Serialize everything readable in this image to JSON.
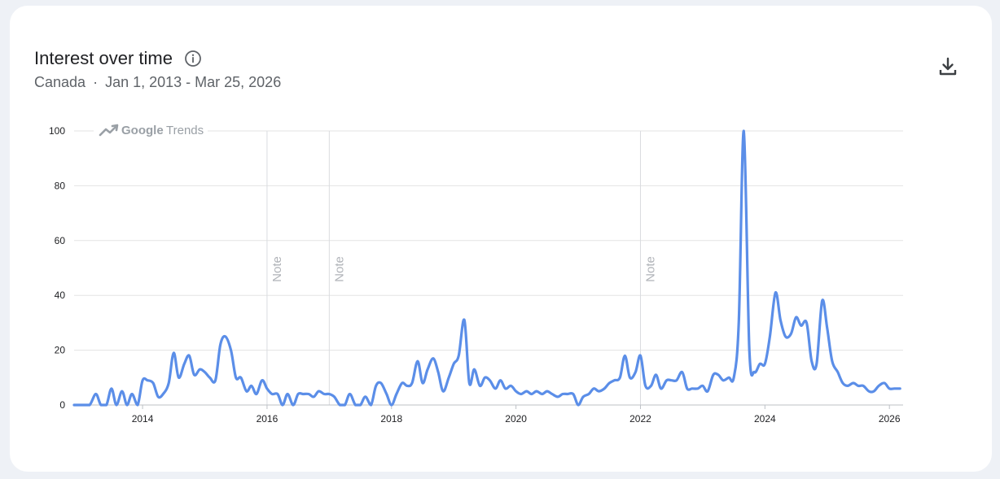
{
  "header": {
    "title": "Interest over time",
    "region": "Canada",
    "separator": "·",
    "date_range": "Jan 1, 2013 - Mar 25, 2026"
  },
  "icons": {
    "info": "info-icon",
    "download": "download-icon",
    "trends_logo": "trending-up-icon"
  },
  "watermark": {
    "brand": "Google",
    "product": "Trends"
  },
  "colors": {
    "line": "#5b8ee8",
    "grid": "#e3e3e3",
    "note_line": "#dadce0"
  },
  "chart_data": {
    "type": "line",
    "title": "Interest over time",
    "xlabel": "",
    "ylabel": "",
    "ylim": [
      0,
      100
    ],
    "xlim": [
      2012.9,
      2026.22
    ],
    "yticks": [
      0,
      20,
      40,
      60,
      80,
      100
    ],
    "xticks": [
      {
        "value": 2014,
        "label": "2014"
      },
      {
        "value": 2016,
        "label": "2016"
      },
      {
        "value": 2018,
        "label": "2018"
      },
      {
        "value": 2020,
        "label": "2020"
      },
      {
        "value": 2022,
        "label": "2022"
      },
      {
        "value": 2024,
        "label": "2024"
      },
      {
        "value": 2026,
        "label": "2026"
      }
    ],
    "grid": true,
    "notes": [
      {
        "x": 2016.0,
        "label": "Note"
      },
      {
        "x": 2017.0,
        "label": "Note"
      },
      {
        "x": 2022.0,
        "label": "Note"
      }
    ],
    "series": [
      {
        "points": [
          [
            2012.9,
            0
          ],
          [
            2013.05,
            0
          ],
          [
            2013.15,
            0
          ],
          [
            2013.25,
            4
          ],
          [
            2013.33,
            0
          ],
          [
            2013.42,
            0
          ],
          [
            2013.5,
            6
          ],
          [
            2013.58,
            0
          ],
          [
            2013.67,
            5
          ],
          [
            2013.75,
            0
          ],
          [
            2013.83,
            4
          ],
          [
            2013.92,
            0
          ],
          [
            2014.0,
            9
          ],
          [
            2014.08,
            9
          ],
          [
            2014.17,
            8
          ],
          [
            2014.25,
            3
          ],
          [
            2014.33,
            4
          ],
          [
            2014.42,
            8
          ],
          [
            2014.5,
            19
          ],
          [
            2014.58,
            10
          ],
          [
            2014.67,
            15
          ],
          [
            2014.75,
            18
          ],
          [
            2014.83,
            11
          ],
          [
            2014.92,
            13
          ],
          [
            2015.0,
            12
          ],
          [
            2015.08,
            10
          ],
          [
            2015.17,
            9
          ],
          [
            2015.25,
            22
          ],
          [
            2015.33,
            25
          ],
          [
            2015.42,
            20
          ],
          [
            2015.5,
            10
          ],
          [
            2015.58,
            10
          ],
          [
            2015.67,
            5
          ],
          [
            2015.75,
            7
          ],
          [
            2015.83,
            4
          ],
          [
            2015.92,
            9
          ],
          [
            2016.0,
            6
          ],
          [
            2016.08,
            4
          ],
          [
            2016.17,
            4
          ],
          [
            2016.25,
            0
          ],
          [
            2016.33,
            4
          ],
          [
            2016.42,
            0
          ],
          [
            2016.5,
            4
          ],
          [
            2016.58,
            4
          ],
          [
            2016.67,
            4
          ],
          [
            2016.75,
            3
          ],
          [
            2016.83,
            5
          ],
          [
            2016.92,
            4
          ],
          [
            2017.0,
            4
          ],
          [
            2017.08,
            3
          ],
          [
            2017.17,
            0
          ],
          [
            2017.25,
            0
          ],
          [
            2017.33,
            4
          ],
          [
            2017.42,
            0
          ],
          [
            2017.5,
            0
          ],
          [
            2017.58,
            3
          ],
          [
            2017.67,
            0
          ],
          [
            2017.75,
            7
          ],
          [
            2017.83,
            8
          ],
          [
            2017.92,
            4
          ],
          [
            2018.0,
            0
          ],
          [
            2018.08,
            4
          ],
          [
            2018.17,
            8
          ],
          [
            2018.25,
            7
          ],
          [
            2018.33,
            8
          ],
          [
            2018.42,
            16
          ],
          [
            2018.5,
            8
          ],
          [
            2018.58,
            13
          ],
          [
            2018.67,
            17
          ],
          [
            2018.75,
            12
          ],
          [
            2018.83,
            5
          ],
          [
            2018.92,
            10
          ],
          [
            2019.0,
            15
          ],
          [
            2019.08,
            18
          ],
          [
            2019.17,
            31
          ],
          [
            2019.25,
            8
          ],
          [
            2019.33,
            13
          ],
          [
            2019.42,
            7
          ],
          [
            2019.5,
            10
          ],
          [
            2019.58,
            9
          ],
          [
            2019.67,
            6
          ],
          [
            2019.75,
            9
          ],
          [
            2019.83,
            6
          ],
          [
            2019.92,
            7
          ],
          [
            2020.0,
            5
          ],
          [
            2020.08,
            4
          ],
          [
            2020.17,
            5
          ],
          [
            2020.25,
            4
          ],
          [
            2020.33,
            5
          ],
          [
            2020.42,
            4
          ],
          [
            2020.5,
            5
          ],
          [
            2020.58,
            4
          ],
          [
            2020.67,
            3
          ],
          [
            2020.75,
            4
          ],
          [
            2020.83,
            4
          ],
          [
            2020.92,
            4
          ],
          [
            2021.0,
            0
          ],
          [
            2021.08,
            3
          ],
          [
            2021.17,
            4
          ],
          [
            2021.25,
            6
          ],
          [
            2021.33,
            5
          ],
          [
            2021.42,
            6
          ],
          [
            2021.5,
            8
          ],
          [
            2021.58,
            9
          ],
          [
            2021.67,
            10
          ],
          [
            2021.75,
            18
          ],
          [
            2021.83,
            10
          ],
          [
            2021.92,
            12
          ],
          [
            2022.0,
            18
          ],
          [
            2022.08,
            7
          ],
          [
            2022.17,
            7
          ],
          [
            2022.25,
            11
          ],
          [
            2022.33,
            6
          ],
          [
            2022.42,
            9
          ],
          [
            2022.5,
            9
          ],
          [
            2022.58,
            9
          ],
          [
            2022.67,
            12
          ],
          [
            2022.75,
            6
          ],
          [
            2022.83,
            6
          ],
          [
            2022.92,
            6
          ],
          [
            2023.0,
            7
          ],
          [
            2023.08,
            5
          ],
          [
            2023.17,
            11
          ],
          [
            2023.25,
            11
          ],
          [
            2023.33,
            9
          ],
          [
            2023.42,
            10
          ],
          [
            2023.5,
            10
          ],
          [
            2023.58,
            30
          ],
          [
            2023.66,
            100
          ],
          [
            2023.75,
            20
          ],
          [
            2023.83,
            12
          ],
          [
            2023.92,
            15
          ],
          [
            2024.0,
            15
          ],
          [
            2024.08,
            25
          ],
          [
            2024.17,
            41
          ],
          [
            2024.25,
            31
          ],
          [
            2024.33,
            25
          ],
          [
            2024.42,
            26
          ],
          [
            2024.5,
            32
          ],
          [
            2024.58,
            29
          ],
          [
            2024.67,
            30
          ],
          [
            2024.75,
            16
          ],
          [
            2024.83,
            15
          ],
          [
            2024.92,
            38
          ],
          [
            2025.0,
            28
          ],
          [
            2025.08,
            16
          ],
          [
            2025.17,
            12
          ],
          [
            2025.25,
            8
          ],
          [
            2025.33,
            7
          ],
          [
            2025.42,
            8
          ],
          [
            2025.5,
            7
          ],
          [
            2025.58,
            7
          ],
          [
            2025.67,
            5
          ],
          [
            2025.75,
            5
          ],
          [
            2025.83,
            7
          ],
          [
            2025.92,
            8
          ],
          [
            2026.0,
            6
          ],
          [
            2026.08,
            6
          ],
          [
            2026.17,
            6
          ]
        ]
      }
    ]
  }
}
